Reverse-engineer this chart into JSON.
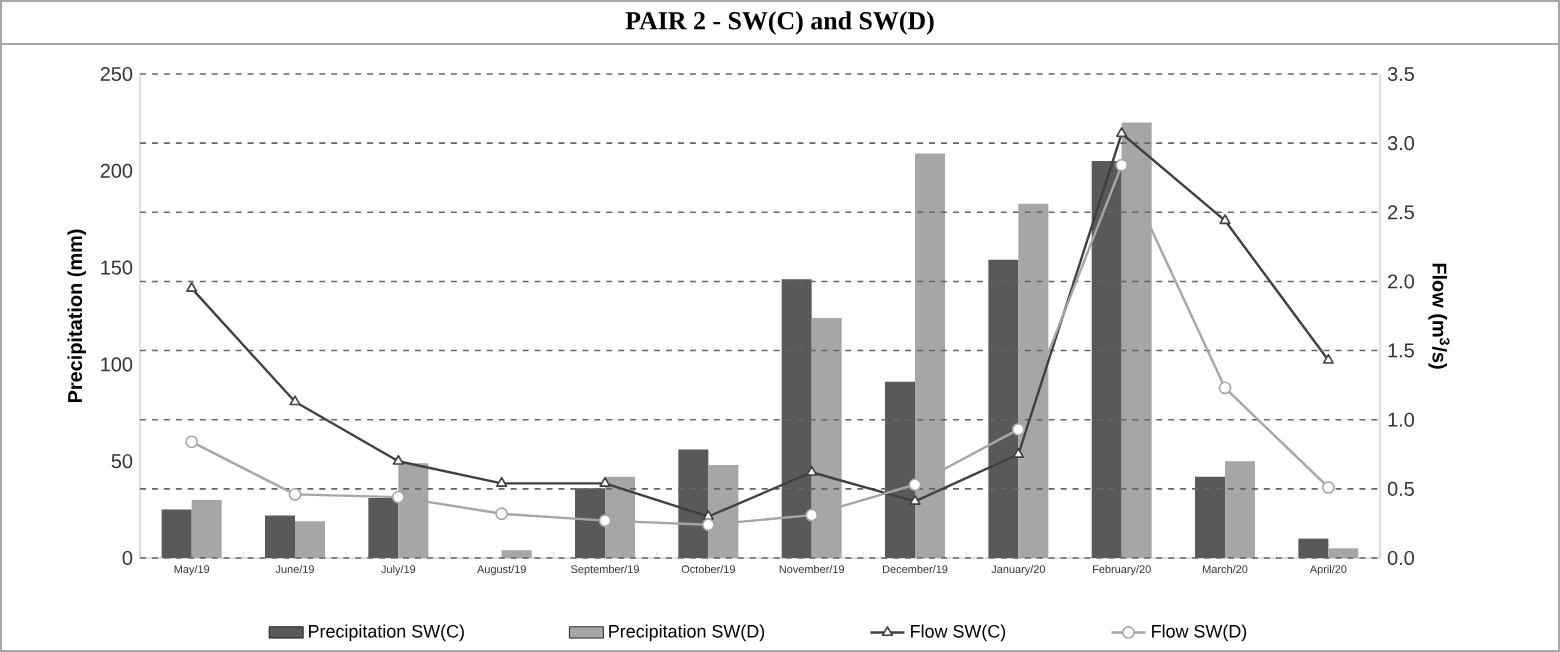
{
  "chart_data": {
    "type": "bar",
    "title": "PAIR 2 - SW(C) and SW(D)",
    "ylabel": "Precipitation (mm)",
    "y2label": "Flow (m$^{3}$/s)",
    "categories": [
      "May/19",
      "June/19",
      "July/19",
      "August/19",
      "September/19",
      "October/19",
      "November/19",
      "December/19",
      "January/20",
      "February/20",
      "March/20",
      "April/20"
    ],
    "series": [
      {
        "name": "Precipitation SW(C)",
        "color": "#595959",
        "values": [
          25,
          22,
          31,
          0,
          36,
          56,
          144,
          91,
          154,
          205,
          42,
          10
        ]
      },
      {
        "name": "Precipitation SW(D)",
        "color": "#a6a6a6",
        "values": [
          30,
          19,
          49,
          4,
          42,
          48,
          124,
          209,
          183,
          225,
          50,
          5
        ]
      },
      {
        "name": "Flow SW(C)",
        "type": "line",
        "axis": "y2",
        "color": "#404040",
        "marker": "triangle",
        "values": [
          1.95,
          1.13,
          0.7,
          0.54,
          0.54,
          0.3,
          0.62,
          0.41,
          0.75,
          3.07,
          2.44,
          1.43
        ]
      },
      {
        "name": "Flow SW(D)",
        "type": "line",
        "axis": "y2",
        "color": "#a6a6a6",
        "marker": "circle",
        "values": [
          0.84,
          0.46,
          0.44,
          0.32,
          0.27,
          0.24,
          0.31,
          0.53,
          0.93,
          2.84,
          1.23,
          0.51
        ]
      }
    ],
    "ylim": [
      0,
      250
    ],
    "yticks": [
      0,
      50,
      100,
      150,
      200,
      250
    ],
    "y2lim": [
      0,
      3.5
    ],
    "y2ticks": [
      {
        "value": 0,
        "label": "0.0"
      },
      {
        "value": 0.5,
        "label": "0.5"
      },
      {
        "value": 1,
        "label": "1.0"
      },
      {
        "value": 1.5,
        "label": "1.5"
      },
      {
        "value": 2,
        "label": "2.0"
      },
      {
        "value": 2.5,
        "label": "2.5"
      },
      {
        "value": 3,
        "label": "3.0"
      },
      {
        "value": 3.5,
        "label": "3.5"
      }
    ],
    "grid": "y2",
    "legend": "bottom",
    "line_style": "solid"
  }
}
